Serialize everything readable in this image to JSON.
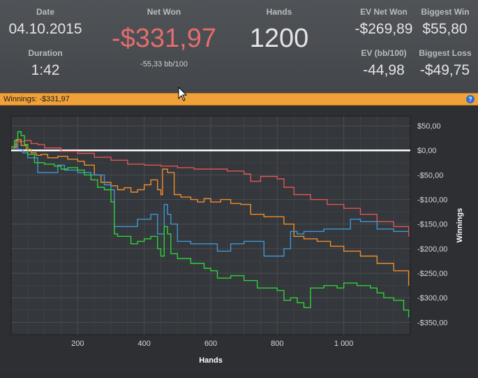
{
  "stats": {
    "date_label": "Date",
    "date_value": "04.10.2015",
    "duration_label": "Duration",
    "duration_value": "1:42",
    "net_won_label": "Net Won",
    "net_won_value": "-$331,97",
    "net_won_sub": "-55,33 bb/100",
    "hands_label": "Hands",
    "hands_value": "1200",
    "ev_net_won_label": "EV Net Won",
    "ev_net_won_value": "-$269,89",
    "ev_bb_label": "EV (bb/100)",
    "ev_bb_value": "-44,98",
    "biggest_win_label": "Biggest Win",
    "biggest_win_value": "$55,80",
    "biggest_loss_label": "Biggest Loss",
    "biggest_loss_value": "-$49,75"
  },
  "winnings_bar": {
    "text": "Winnings: -$331,97",
    "help_icon": "help-icon"
  },
  "colors": {
    "red": "#e05555",
    "orange": "#ef8c2e",
    "blue": "#3e97d6",
    "green": "#2fd13a",
    "zero_line": "#ffffff"
  },
  "chart_data": {
    "type": "line",
    "xlabel": "Hands",
    "ylabel": "Winnings",
    "xlim": [
      0,
      1200
    ],
    "ylim": [
      -375,
      70
    ],
    "xticks": [
      200,
      400,
      600,
      800,
      1000
    ],
    "xtick_labels": [
      "200",
      "400",
      "600",
      "800",
      "1 000"
    ],
    "yticks": [
      50,
      0,
      -50,
      -100,
      -150,
      -200,
      -250,
      -300,
      -350
    ],
    "ytick_labels": [
      "$50,00",
      "$0,00",
      "-$50,00",
      "-$100,00",
      "-$150,00",
      "-$200,00",
      "-$250,00",
      "-$300,00",
      "-$350,00"
    ],
    "grid": true,
    "series": [
      {
        "color": "red",
        "x": [
          0,
          20,
          40,
          60,
          80,
          100,
          150,
          200,
          250,
          300,
          350,
          400,
          450,
          500,
          550,
          600,
          650,
          700,
          720,
          750,
          800,
          820,
          850,
          900,
          950,
          1000,
          1050,
          1100,
          1150,
          1195
        ],
        "y": [
          8,
          18,
          20,
          14,
          12,
          5,
          -2,
          -6,
          -14,
          -20,
          -28,
          -30,
          -32,
          -35,
          -38,
          -38,
          -42,
          -48,
          -63,
          -53,
          -58,
          -75,
          -90,
          -100,
          -110,
          -118,
          -130,
          -145,
          -155,
          -175
        ]
      },
      {
        "color": "orange",
        "x": [
          0,
          15,
          30,
          45,
          60,
          75,
          90,
          110,
          140,
          170,
          200,
          220,
          250,
          270,
          300,
          320,
          340,
          360,
          380,
          400,
          420,
          440,
          450,
          455,
          470,
          490,
          510,
          540,
          560,
          580,
          600,
          630,
          660,
          690,
          720,
          760,
          790,
          820,
          850,
          880,
          920,
          960,
          1000,
          1050,
          1100,
          1150,
          1195
        ],
        "y": [
          5,
          22,
          10,
          2,
          -5,
          -10,
          -8,
          -15,
          -12,
          -18,
          -22,
          -30,
          -50,
          -65,
          -72,
          -80,
          -76,
          -85,
          -80,
          -70,
          -60,
          -80,
          -90,
          -38,
          -45,
          -90,
          -95,
          -100,
          -105,
          -98,
          -105,
          -100,
          -108,
          -110,
          -130,
          -135,
          -135,
          -150,
          -175,
          -180,
          -185,
          -195,
          -205,
          -215,
          -230,
          -245,
          -275
        ]
      },
      {
        "color": "blue",
        "x": [
          0,
          10,
          20,
          35,
          50,
          80,
          120,
          140,
          160,
          200,
          240,
          280,
          300,
          310,
          360,
          380,
          400,
          420,
          440,
          450,
          460,
          470,
          480,
          500,
          540,
          580,
          600,
          620,
          660,
          700,
          740,
          760,
          800,
          820,
          840,
          860,
          880,
          900,
          940,
          1000,
          1020,
          1050,
          1100,
          1150,
          1195
        ],
        "y": [
          5,
          12,
          2,
          -5,
          -15,
          -45,
          -45,
          -30,
          -40,
          -45,
          -50,
          -70,
          -80,
          -155,
          -155,
          -140,
          -140,
          -130,
          -170,
          -170,
          -110,
          -130,
          -150,
          -185,
          -190,
          -190,
          -190,
          -205,
          -190,
          -185,
          -185,
          -215,
          -215,
          -200,
          -165,
          -170,
          -165,
          -165,
          -160,
          -160,
          -140,
          -145,
          -160,
          -165,
          -165
        ]
      },
      {
        "color": "green",
        "x": [
          0,
          10,
          20,
          30,
          40,
          50,
          70,
          100,
          130,
          150,
          170,
          200,
          220,
          240,
          260,
          280,
          300,
          310,
          320,
          340,
          360,
          380,
          400,
          420,
          440,
          450,
          460,
          470,
          480,
          500,
          540,
          580,
          600,
          620,
          660,
          700,
          740,
          760,
          800,
          820,
          840,
          860,
          880,
          900,
          940,
          980,
          1000,
          1040,
          1080,
          1100,
          1120,
          1150,
          1180,
          1195
        ],
        "y": [
          5,
          20,
          38,
          30,
          12,
          -8,
          -25,
          -28,
          -32,
          -38,
          -35,
          -40,
          -50,
          -60,
          -75,
          -80,
          -105,
          -170,
          -175,
          -175,
          -190,
          -185,
          -180,
          -175,
          -200,
          -215,
          -155,
          -170,
          -210,
          -220,
          -230,
          -240,
          -245,
          -260,
          -255,
          -265,
          -280,
          -280,
          -285,
          -305,
          -300,
          -310,
          -320,
          -280,
          -275,
          -280,
          -270,
          -275,
          -280,
          -290,
          -300,
          -305,
          -325,
          -340
        ]
      }
    ]
  }
}
